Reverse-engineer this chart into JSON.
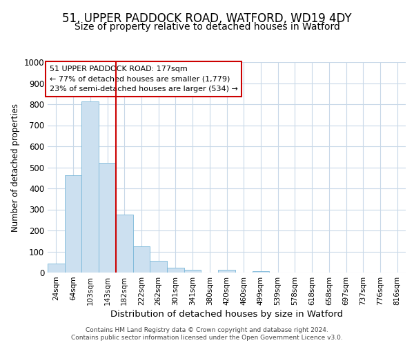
{
  "title_line1": "51, UPPER PADDOCK ROAD, WATFORD, WD19 4DY",
  "title_line2": "Size of property relative to detached houses in Watford",
  "xlabel": "Distribution of detached houses by size in Watford",
  "ylabel": "Number of detached properties",
  "footer_line1": "Contains HM Land Registry data © Crown copyright and database right 2024.",
  "footer_line2": "Contains public sector information licensed under the Open Government Licence v3.0.",
  "annotation_line1": "51 UPPER PADDOCK ROAD: 177sqm",
  "annotation_line2": "← 77% of detached houses are smaller (1,779)",
  "annotation_line3": "23% of semi-detached houses are larger (534) →",
  "bar_labels": [
    "24sqm",
    "64sqm",
    "103sqm",
    "143sqm",
    "182sqm",
    "222sqm",
    "262sqm",
    "301sqm",
    "341sqm",
    "380sqm",
    "420sqm",
    "460sqm",
    "499sqm",
    "539sqm",
    "578sqm",
    "618sqm",
    "658sqm",
    "697sqm",
    "737sqm",
    "776sqm",
    "816sqm"
  ],
  "bar_values": [
    42,
    462,
    812,
    520,
    275,
    125,
    57,
    22,
    12,
    0,
    12,
    0,
    8,
    0,
    0,
    0,
    0,
    0,
    0,
    0,
    0
  ],
  "bar_color": "#cce0f0",
  "bar_edge_color": "#7ab8d9",
  "property_line_color": "#cc0000",
  "property_line_index": 4,
  "ylim": [
    0,
    1000
  ],
  "yticks": [
    0,
    100,
    200,
    300,
    400,
    500,
    600,
    700,
    800,
    900,
    1000
  ],
  "background_color": "#ffffff",
  "grid_color": "#c8d8e8",
  "annotation_box_color": "#cc0000",
  "title1_fontsize": 12,
  "title2_fontsize": 10
}
